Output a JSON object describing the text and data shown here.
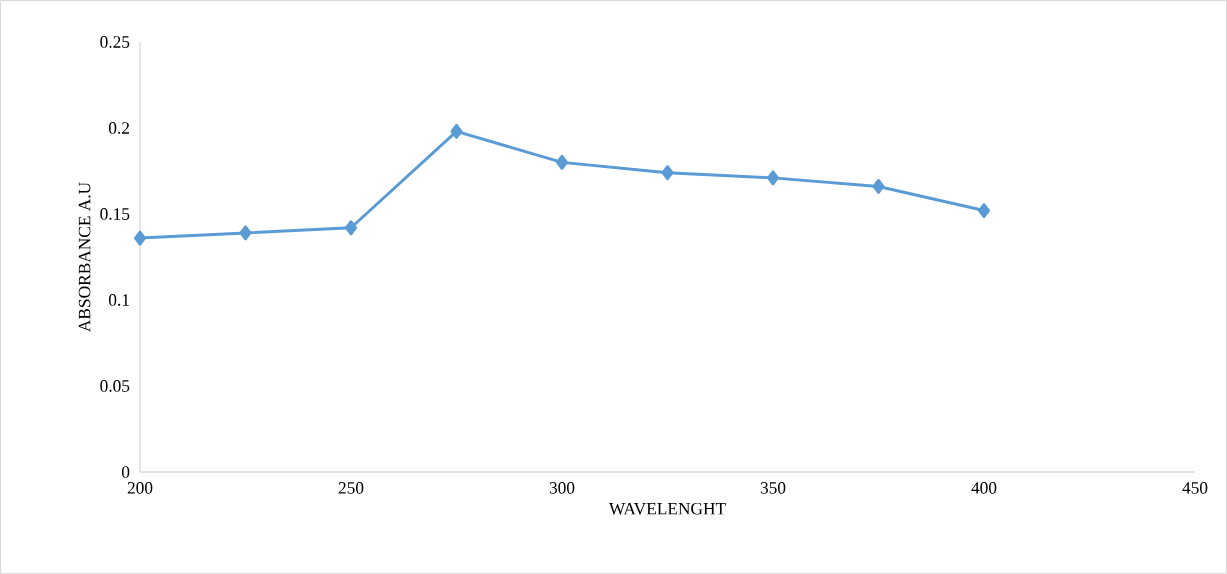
{
  "chart_data": {
    "type": "line",
    "xlabel": "WAVELENGHT",
    "ylabel": "ABSORBANCE A.U",
    "x": [
      200,
      225,
      250,
      275,
      300,
      325,
      350,
      375,
      400
    ],
    "series": [
      {
        "color": "#5b9bd5",
        "values": [
          0.136,
          0.139,
          0.142,
          0.198,
          0.18,
          0.174,
          0.171,
          0.166,
          0.152
        ]
      }
    ],
    "xlim": [
      200,
      450
    ],
    "xticks": [
      200,
      250,
      300,
      350,
      400,
      450
    ],
    "ylim": [
      0,
      0.25
    ],
    "yticks": [
      0,
      {
        "value": 0.05,
        "label": "0.05"
      },
      {
        "value": 0.1,
        "label": "0.1"
      },
      {
        "value": 0.15,
        "label": "0.15"
      },
      {
        "value": 0.2,
        "label": "0.2"
      },
      {
        "value": 0.25,
        "label": "0.25"
      }
    ],
    "grid": false,
    "marker": "diamond",
    "line_style": "solid"
  }
}
